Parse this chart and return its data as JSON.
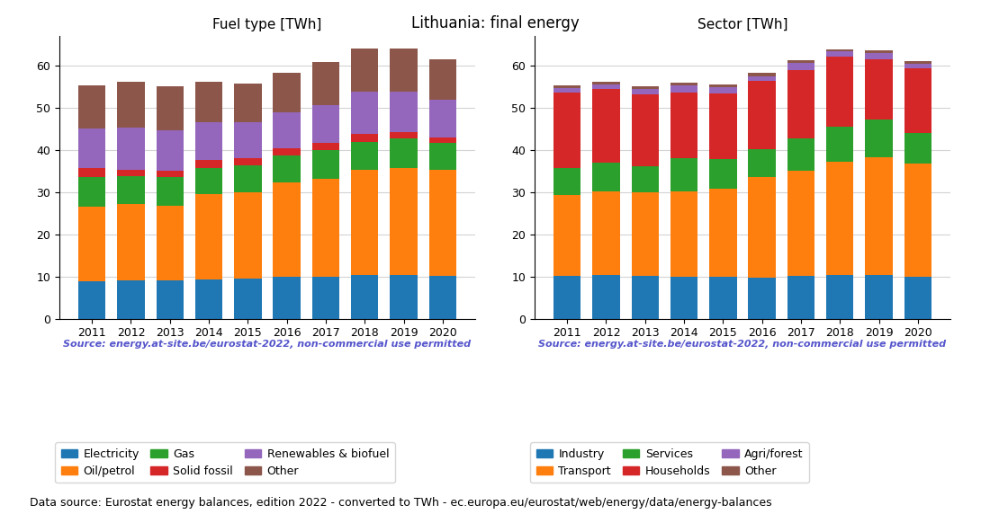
{
  "years": [
    2011,
    2012,
    2013,
    2014,
    2015,
    2016,
    2017,
    2018,
    2019,
    2020
  ],
  "title": "Lithuania: final energy",
  "source_text": "Source: energy.at-site.be/eurostat-2022, non-commercial use permitted",
  "footer_text": "Data source: Eurostat energy balances, edition 2022 - converted to TWh - ec.europa.eu/eurostat/web/energy/data/energy-balances",
  "fuel_title": "Fuel type [TWh]",
  "fuel_data": {
    "Electricity": [
      8.8,
      9.1,
      9.0,
      9.3,
      9.5,
      9.9,
      10.0,
      10.4,
      10.4,
      10.2
    ],
    "Oil/petrol": [
      17.8,
      18.0,
      17.8,
      20.2,
      20.4,
      22.4,
      23.2,
      24.8,
      25.4,
      25.0
    ],
    "Gas": [
      7.0,
      6.6,
      6.8,
      6.3,
      6.4,
      6.4,
      6.8,
      6.7,
      7.0,
      6.5
    ],
    "Solid fossil": [
      2.2,
      1.6,
      1.5,
      1.8,
      1.8,
      1.6,
      1.6,
      2.0,
      1.5,
      1.3
    ],
    "Renewables & biofuel": [
      9.3,
      10.0,
      9.6,
      9.0,
      8.5,
      8.7,
      9.1,
      9.8,
      9.5,
      8.8
    ],
    "Other": [
      10.3,
      10.8,
      10.4,
      9.5,
      9.1,
      9.3,
      10.1,
      10.4,
      10.2,
      9.7
    ]
  },
  "fuel_colors": {
    "Electricity": "#1f77b4",
    "Oil/petrol": "#ff7f0e",
    "Gas": "#2ca02c",
    "Solid fossil": "#d62728",
    "Renewables & biofuel": "#9467bd",
    "Other": "#8c564b"
  },
  "sector_title": "Sector [TWh]",
  "sector_data": {
    "Industry": [
      10.1,
      10.4,
      10.2,
      10.0,
      10.0,
      9.8,
      10.2,
      10.4,
      10.4,
      10.0
    ],
    "Transport": [
      19.2,
      19.7,
      19.7,
      20.2,
      20.8,
      23.7,
      24.8,
      26.8,
      27.8,
      26.7
    ],
    "Services": [
      6.3,
      6.9,
      6.2,
      7.8,
      7.1,
      6.6,
      7.8,
      8.3,
      9.0,
      7.4
    ],
    "Households": [
      18.0,
      17.4,
      17.1,
      15.6,
      15.5,
      16.2,
      16.2,
      16.7,
      14.3,
      15.2
    ],
    "Agri/forest": [
      1.1,
      1.2,
      1.2,
      1.6,
      1.4,
      1.2,
      1.6,
      1.2,
      1.5,
      1.1
    ],
    "Other": [
      0.7,
      0.5,
      0.6,
      0.7,
      0.7,
      0.8,
      0.6,
      0.5,
      0.5,
      0.7
    ]
  },
  "sector_colors": {
    "Industry": "#1f77b4",
    "Transport": "#ff7f0e",
    "Services": "#2ca02c",
    "Households": "#d62728",
    "Agri/forest": "#9467bd",
    "Other": "#8c564b"
  },
  "ylim": [
    0,
    67
  ],
  "yticks": [
    0,
    10,
    20,
    30,
    40,
    50,
    60
  ],
  "source_color": "#5555cc",
  "source_fontsize": 8,
  "footer_fontsize": 9,
  "title_fontsize": 12,
  "axis_title_fontsize": 11,
  "tick_fontsize": 9,
  "legend_fontsize": 9
}
